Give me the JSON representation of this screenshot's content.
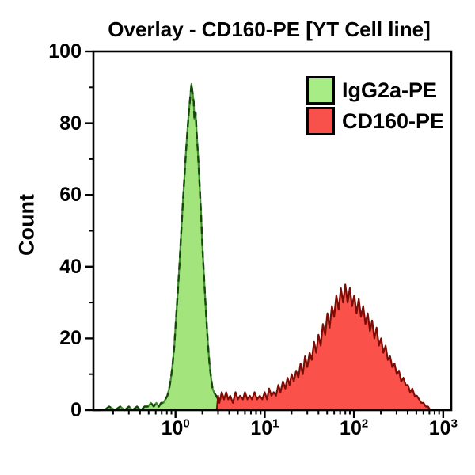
{
  "chart_data": {
    "type": "area",
    "subtype": "flow-cytometry-histogram-overlay",
    "title": "Overlay - CD160-PE [YT Cell line]",
    "ylabel": "Count",
    "xlabel": "",
    "x_scale": "log",
    "xlim_exp": [
      -0.92,
      3.09
    ],
    "ylim": [
      0,
      100
    ],
    "y_major_ticks": [
      0,
      20,
      40,
      60,
      80,
      100
    ],
    "y_minor_ticks": [
      10,
      30,
      50,
      70,
      90
    ],
    "x_major_tick_exponents": [
      0,
      1,
      2,
      3
    ],
    "grid": "off",
    "legend_position": "top-right-inside",
    "axis_color": "#000000",
    "background_color": "#ffffff",
    "series": [
      {
        "name": "IgG2a-PE",
        "fill": "#a3e57c",
        "swatch": "#a8ec85",
        "stroke": "#3f8f2e",
        "stroke_dash_color": "#15470d",
        "stroke_style": "dashed",
        "peak_x": 1.51,
        "peak_count": 91,
        "points": [
          [
            0.12,
            0
          ],
          [
            0.16,
            0
          ],
          [
            0.18,
            1
          ],
          [
            0.21,
            0
          ],
          [
            0.24,
            1
          ],
          [
            0.27,
            0
          ],
          [
            0.3,
            1
          ],
          [
            0.33,
            0
          ],
          [
            0.37,
            1
          ],
          [
            0.41,
            0
          ],
          [
            0.45,
            1
          ],
          [
            0.49,
            1
          ],
          [
            0.53,
            2
          ],
          [
            0.57,
            1
          ],
          [
            0.61,
            2
          ],
          [
            0.65,
            1
          ],
          [
            0.69,
            2
          ],
          [
            0.73,
            2
          ],
          [
            0.77,
            3
          ],
          [
            0.81,
            4
          ],
          [
            0.85,
            6
          ],
          [
            0.89,
            9
          ],
          [
            0.93,
            13
          ],
          [
            0.97,
            18
          ],
          [
            1.01,
            25
          ],
          [
            1.06,
            33
          ],
          [
            1.11,
            41
          ],
          [
            1.16,
            50
          ],
          [
            1.21,
            58
          ],
          [
            1.26,
            65
          ],
          [
            1.31,
            72
          ],
          [
            1.36,
            78
          ],
          [
            1.41,
            83
          ],
          [
            1.46,
            87
          ],
          [
            1.51,
            91
          ],
          [
            1.56,
            88
          ],
          [
            1.6,
            86
          ],
          [
            1.63,
            81
          ],
          [
            1.68,
            83
          ],
          [
            1.73,
            77
          ],
          [
            1.79,
            71
          ],
          [
            1.86,
            63
          ],
          [
            1.93,
            55
          ],
          [
            2.0,
            46
          ],
          [
            2.1,
            36
          ],
          [
            2.2,
            27
          ],
          [
            2.3,
            19
          ],
          [
            2.4,
            13
          ],
          [
            2.5,
            9
          ],
          [
            2.6,
            6
          ],
          [
            2.7,
            5
          ],
          [
            2.85,
            4
          ],
          [
            3.0,
            3
          ],
          [
            3.3,
            2
          ],
          [
            3.6,
            2
          ],
          [
            4.0,
            1
          ],
          [
            4.5,
            1
          ],
          [
            5.0,
            0
          ]
        ]
      },
      {
        "name": "CD160-PE",
        "fill": "#fa514a",
        "swatch": "#f8504b",
        "stroke": "#7c0d06",
        "stroke_style": "solid",
        "peak_x": 80,
        "peak_count": 35,
        "points": [
          [
            2.9,
            0
          ],
          [
            3.0,
            4
          ],
          [
            3.1,
            2
          ],
          [
            3.3,
            5
          ],
          [
            3.5,
            3
          ],
          [
            3.7,
            5
          ],
          [
            3.9,
            3
          ],
          [
            4.1,
            4
          ],
          [
            4.4,
            2
          ],
          [
            4.7,
            5
          ],
          [
            5.0,
            3
          ],
          [
            5.3,
            4
          ],
          [
            5.7,
            3
          ],
          [
            6.0,
            5
          ],
          [
            6.4,
            3
          ],
          [
            6.8,
            4
          ],
          [
            7.2,
            3
          ],
          [
            7.7,
            5
          ],
          [
            8.2,
            3
          ],
          [
            8.8,
            4
          ],
          [
            9.4,
            3
          ],
          [
            10,
            5
          ],
          [
            10.6,
            3
          ],
          [
            11.2,
            6
          ],
          [
            11.9,
            4
          ],
          [
            12.6,
            5
          ],
          [
            13.4,
            4
          ],
          [
            14.2,
            7
          ],
          [
            15,
            5
          ],
          [
            16,
            8
          ],
          [
            17,
            6
          ],
          [
            18,
            9
          ],
          [
            19,
            7
          ],
          [
            20,
            10
          ],
          [
            21.2,
            8
          ],
          [
            22.5,
            11
          ],
          [
            23.8,
            9
          ],
          [
            25.2,
            13
          ],
          [
            26.7,
            10
          ],
          [
            28.3,
            15
          ],
          [
            30,
            12
          ],
          [
            31.8,
            16
          ],
          [
            33.7,
            14
          ],
          [
            35.7,
            19
          ],
          [
            37.8,
            16
          ],
          [
            40,
            21
          ],
          [
            42.4,
            18
          ],
          [
            44.9,
            24
          ],
          [
            47.6,
            21
          ],
          [
            50.4,
            27
          ],
          [
            53.4,
            23
          ],
          [
            56.6,
            29
          ],
          [
            60,
            26
          ],
          [
            63.5,
            32
          ],
          [
            67.3,
            28
          ],
          [
            71.3,
            34
          ],
          [
            75.5,
            30
          ],
          [
            80,
            35
          ],
          [
            84.8,
            30
          ],
          [
            89.8,
            34
          ],
          [
            95.1,
            29
          ],
          [
            100.8,
            32
          ],
          [
            106.8,
            27
          ],
          [
            113.1,
            31
          ],
          [
            119.8,
            26
          ],
          [
            126.9,
            29
          ],
          [
            134.5,
            24
          ],
          [
            142.5,
            27
          ],
          [
            150.9,
            22
          ],
          [
            159.9,
            25
          ],
          [
            169.4,
            20
          ],
          [
            179.4,
            23
          ],
          [
            190.1,
            18
          ],
          [
            201.4,
            20
          ],
          [
            213.3,
            16
          ],
          [
            226,
            18
          ],
          [
            239.4,
            14
          ],
          [
            253.6,
            15
          ],
          [
            268.7,
            12
          ],
          [
            284.6,
            13
          ],
          [
            301.5,
            10
          ],
          [
            319.4,
            11
          ],
          [
            338.4,
            8
          ],
          [
            358.5,
            9
          ],
          [
            379.8,
            7
          ],
          [
            402.3,
            7
          ],
          [
            426.2,
            5
          ],
          [
            451.5,
            6
          ],
          [
            478.3,
            4
          ],
          [
            506.7,
            4
          ],
          [
            536.8,
            3
          ],
          [
            568.6,
            2
          ],
          [
            602.4,
            2
          ],
          [
            638.1,
            1
          ],
          [
            676,
            1
          ],
          [
            716.1,
            0
          ]
        ]
      }
    ]
  }
}
